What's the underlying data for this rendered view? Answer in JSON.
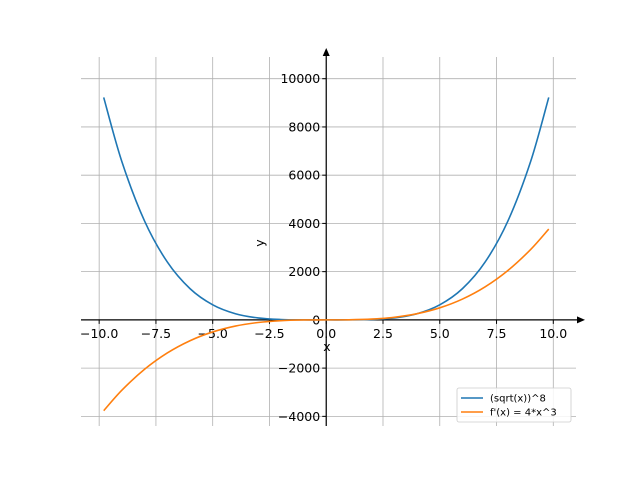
{
  "chart_data": {
    "type": "line",
    "title": "",
    "xlabel": "x",
    "ylabel": "y",
    "xlim": [
      -10.8,
      11
    ],
    "ylim": [
      -4400,
      10900
    ],
    "grid": true,
    "legend_position": "lower-right",
    "x_ticks": [
      -10.0,
      -7.5,
      -5.0,
      -2.5,
      0.0,
      2.5,
      5.0,
      7.5,
      10.0
    ],
    "x_tick_labels": [
      "−10.0",
      "−7.5",
      "−5.0",
      "−2.5",
      "0.0",
      "2.5",
      "5.0",
      "7.5",
      "10.0"
    ],
    "y_ticks": [
      -4000,
      -2000,
      0,
      2000,
      4000,
      6000,
      8000,
      10000
    ],
    "y_tick_labels": [
      "−4000",
      "−2000",
      "0",
      "2000",
      "4000",
      "6000",
      "8000",
      "10000"
    ],
    "x": [
      -9.8,
      -9.0,
      -8.0,
      -7.0,
      -6.0,
      -5.0,
      -4.0,
      -3.0,
      -2.0,
      -1.0,
      0.0,
      1.0,
      2.0,
      3.0,
      4.0,
      5.0,
      6.0,
      7.0,
      8.0,
      9.0,
      9.8
    ],
    "series": [
      {
        "name": "(sqrt(x))^8",
        "color": "#1f77b4",
        "values": [
          9224,
          6561,
          4096,
          2401,
          1296,
          625,
          256,
          81,
          16,
          1,
          0,
          1,
          16,
          81,
          256,
          625,
          1296,
          2401,
          4096,
          6561,
          9224
        ]
      },
      {
        "name": "f'(x) = 4*x^3",
        "color": "#ff7f0e",
        "values": [
          -3765,
          -2916,
          -2048,
          -1372,
          -864,
          -500,
          -256,
          -108,
          -32,
          -4,
          0,
          4,
          32,
          108,
          256,
          500,
          864,
          1372,
          2048,
          2916,
          3765
        ]
      }
    ]
  }
}
